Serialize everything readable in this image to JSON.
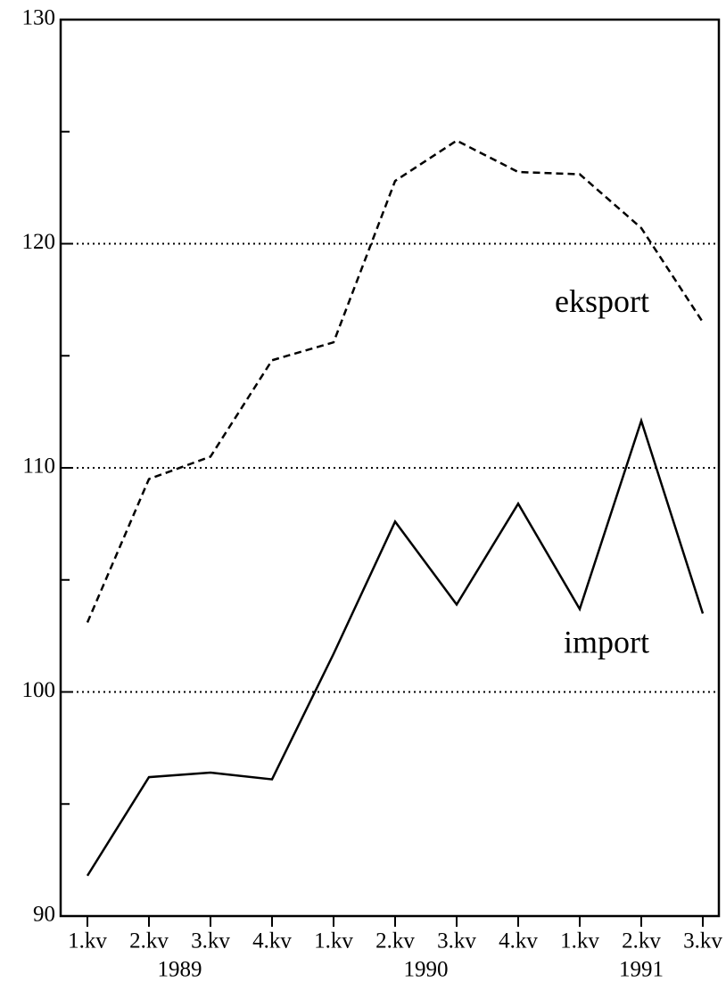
{
  "chart_data": {
    "type": "line",
    "categories": [
      "1.kv",
      "2.kv",
      "3.kv",
      "4.kv",
      "1.kv",
      "2.kv",
      "3.kv",
      "4.kv",
      "1.kv",
      "2.kv",
      "3.kv"
    ],
    "groups": [
      {
        "label": "1989",
        "start": 0,
        "end": 3
      },
      {
        "label": "1990",
        "start": 4,
        "end": 7
      },
      {
        "label": "1991",
        "start": 8,
        "end": 10
      }
    ],
    "series": [
      {
        "name": "eksport",
        "color": "#000000",
        "dash": true,
        "values": [
          103.1,
          109.5,
          110.5,
          114.8,
          115.6,
          122.8,
          124.6,
          123.2,
          123.1,
          120.7,
          116.5
        ]
      },
      {
        "name": "import",
        "color": "#000000",
        "dash": false,
        "values": [
          91.8,
          96.2,
          96.4,
          96.1,
          101.7,
          107.6,
          103.9,
          108.4,
          103.7,
          112.1,
          103.5
        ]
      }
    ],
    "ylim": [
      90,
      130
    ],
    "yticks": [
      90,
      100,
      110,
      120,
      130
    ],
    "minor_yticks": [
      95,
      105,
      115,
      125
    ],
    "grid": true
  }
}
